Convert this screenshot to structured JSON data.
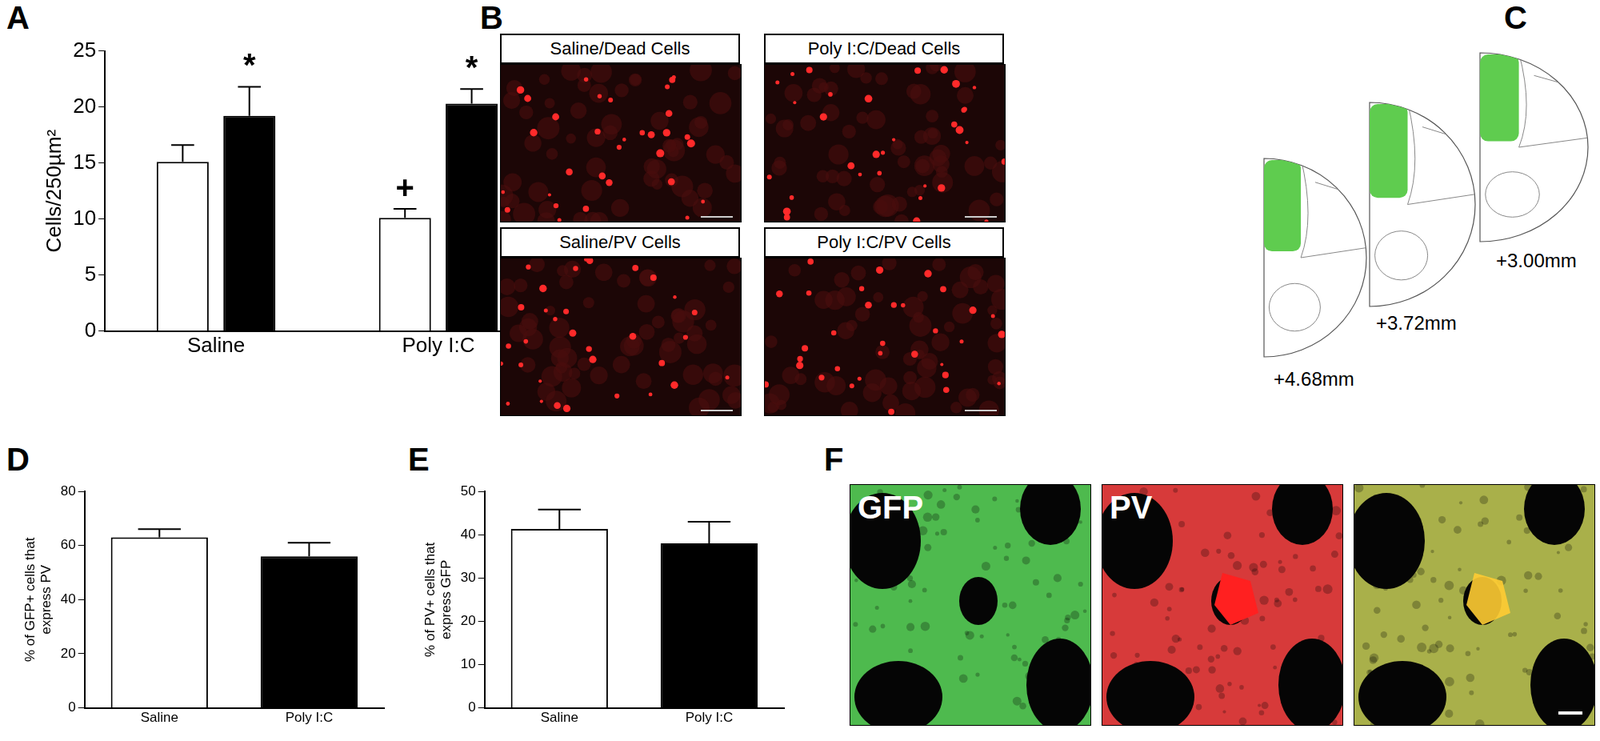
{
  "chart_data": [
    {
      "panel": "A",
      "type": "bar",
      "categories": [
        "Saline",
        "Poly I:C"
      ],
      "series": [
        {
          "name": "Dead Cells",
          "color": "#ffffff",
          "values": [
            15.1,
            10.1
          ],
          "errors": [
            1.5,
            0.8
          ]
        },
        {
          "name": "PV Cells",
          "color": "#000000",
          "values": [
            19.2,
            20.3
          ],
          "errors": [
            2.6,
            1.3
          ]
        }
      ],
      "y_label": "Cells/250µm²",
      "ylim": [
        0,
        25
      ],
      "yticks": [
        0,
        5,
        10,
        15,
        20,
        25
      ],
      "grid": false,
      "legend": "right",
      "annotations": [
        {
          "text": "*",
          "category": "Saline",
          "series": "PV Cells"
        },
        {
          "text": "+",
          "category": "Poly I:C",
          "series": "Dead Cells"
        },
        {
          "text": "*",
          "category": "Poly I:C",
          "series": "PV Cells"
        }
      ]
    },
    {
      "panel": "D",
      "type": "bar",
      "categories": [
        "Saline",
        "Poly I:C"
      ],
      "values": [
        63,
        56
      ],
      "errors": [
        3,
        5
      ],
      "colors": [
        "#ffffff",
        "#000000"
      ],
      "y_label": "% of GFP+ cells that express PV",
      "ylim": [
        0,
        80
      ],
      "yticks": [
        0,
        20,
        40,
        60,
        80
      ],
      "grid": false
    },
    {
      "panel": "E",
      "type": "bar",
      "categories": [
        "Saline",
        "Poly I:C"
      ],
      "values": [
        41.3,
        38
      ],
      "errors": [
        4.5,
        5
      ],
      "colors": [
        "#ffffff",
        "#000000"
      ],
      "y_label": "% of PV+ cells that express GFP",
      "ylim": [
        0,
        50
      ],
      "yticks": [
        0,
        10,
        20,
        30,
        40,
        50
      ],
      "grid": false
    }
  ],
  "images": [
    {
      "panel": "B",
      "tiles": [
        "Saline/Dead Cells",
        "Poly I:C/Dead Cells",
        "Saline/PV Cells",
        "Poly I:C/PV Cells"
      ]
    },
    {
      "panel": "C",
      "sections": [
        "+4.68mm",
        "+3.72mm",
        "+3.00mm"
      ]
    },
    {
      "panel": "F",
      "tiles": [
        {
          "label": "GFP",
          "color": "#2fae2f"
        },
        {
          "label": "PV",
          "color": "#d01818"
        },
        {
          "label": null,
          "color": "#9aa22a"
        }
      ]
    }
  ]
}
